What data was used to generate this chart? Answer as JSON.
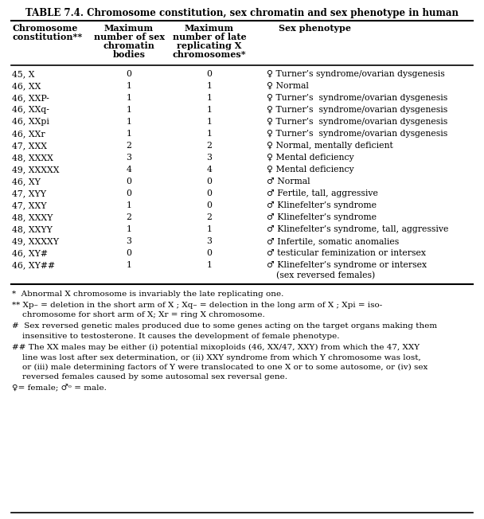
{
  "title": "TABLE 7.4. Chromosome constitution, sex chromatin and sex phenotype in human",
  "col_headers_line1": [
    "Chromosome",
    "Maximum",
    "Maximum",
    "Sex phenotype"
  ],
  "col_headers_line2": [
    "constitution**",
    "number of sex",
    "number of late",
    ""
  ],
  "col_headers_line3": [
    "",
    "chromatin",
    "replicating X",
    ""
  ],
  "col_headers_line4": [
    "",
    "bodies",
    "chromosomes*",
    ""
  ],
  "rows": [
    [
      "45, X",
      "0",
      "0",
      "♀ Turner’s syndrome/ovarian dysgenesis"
    ],
    [
      "46, XX",
      "1",
      "1",
      "♀ Normal"
    ],
    [
      "46, XXP-",
      "1",
      "1",
      "♀ Turner’s  syndrome/ovarian dysgenesis"
    ],
    [
      "46, XXq-",
      "1",
      "1",
      "♀ Turner’s  syndrome/ovarian dysgenesis"
    ],
    [
      "46, XXpi",
      "1",
      "1",
      "♀ Turner’s  syndrome/ovarian dysgenesis"
    ],
    [
      "46, XXr",
      "1",
      "1",
      "♀ Turner’s  syndrome/ovarian dysgenesis"
    ],
    [
      "47, XXX",
      "2",
      "2",
      "♀ Normal, mentally deficient"
    ],
    [
      "48, XXXX",
      "3",
      "3",
      "♀ Mental deficiency"
    ],
    [
      "49, XXXXX",
      "4",
      "4",
      "♀ Mental deficiency"
    ],
    [
      "46, XY",
      "0",
      "0",
      "♂ Normal"
    ],
    [
      "47, XYY",
      "0",
      "0",
      "♂ Fertile, tall, aggressive"
    ],
    [
      "47, XXY",
      "1",
      "0",
      "♂ Klinefelter’s syndrome"
    ],
    [
      "48, XXXY",
      "2",
      "2",
      "♂ Klinefelter’s syndrome"
    ],
    [
      "48, XXYY",
      "1",
      "1",
      "♂ Klinefelter’s syndrome, tall, aggressive"
    ],
    [
      "49, XXXXY",
      "3",
      "3",
      "♂ Infertile, somatic anomalies"
    ],
    [
      "46, XY#",
      "0",
      "0",
      "♂ testicular feminization or intersex"
    ],
    [
      "46, XY##",
      "1",
      "1",
      "♂ Klinefelter’s syndrome or intersex"
    ]
  ],
  "last_row_extra": "(sex reversed females)",
  "footnote1": "*  Abnormal X chromosome is invariably the late replicating one.",
  "footnote2a": "** Xp– = deletion in the short arm of X ; Xq– = delection in the long arm of X ; Xpi = iso-",
  "footnote2b": "    chromosome for short arm of X; Xr = ring X chromosome.",
  "footnote3a": "#  Sex reversed genetic males produced due to some genes acting on the target organs making them",
  "footnote3b": "    insensitive to testosterone. It causes the development of female phenotype.",
  "footnote4a": "## The XX males may be either (i) potential mixoploids (46, XX/47, XXY) from which the 47, XXY",
  "footnote4b": "    line was lost after sex determination, or (ii) XXY syndrome from which Y chromosome was lost,",
  "footnote4c": "    or (iii) male determining factors of Y were translocated to one X or to some autosome, or (iv) sex",
  "footnote4d": "    reversed females caused by some autosomal sex reversal gene.",
  "footnote5": "♀= female; ♂ᵒ = male.",
  "bg": "#ffffff",
  "fg": "#000000",
  "fs": 7.8,
  "fs_title": 8.5,
  "fs_header": 8.0,
  "fs_fn": 7.5
}
